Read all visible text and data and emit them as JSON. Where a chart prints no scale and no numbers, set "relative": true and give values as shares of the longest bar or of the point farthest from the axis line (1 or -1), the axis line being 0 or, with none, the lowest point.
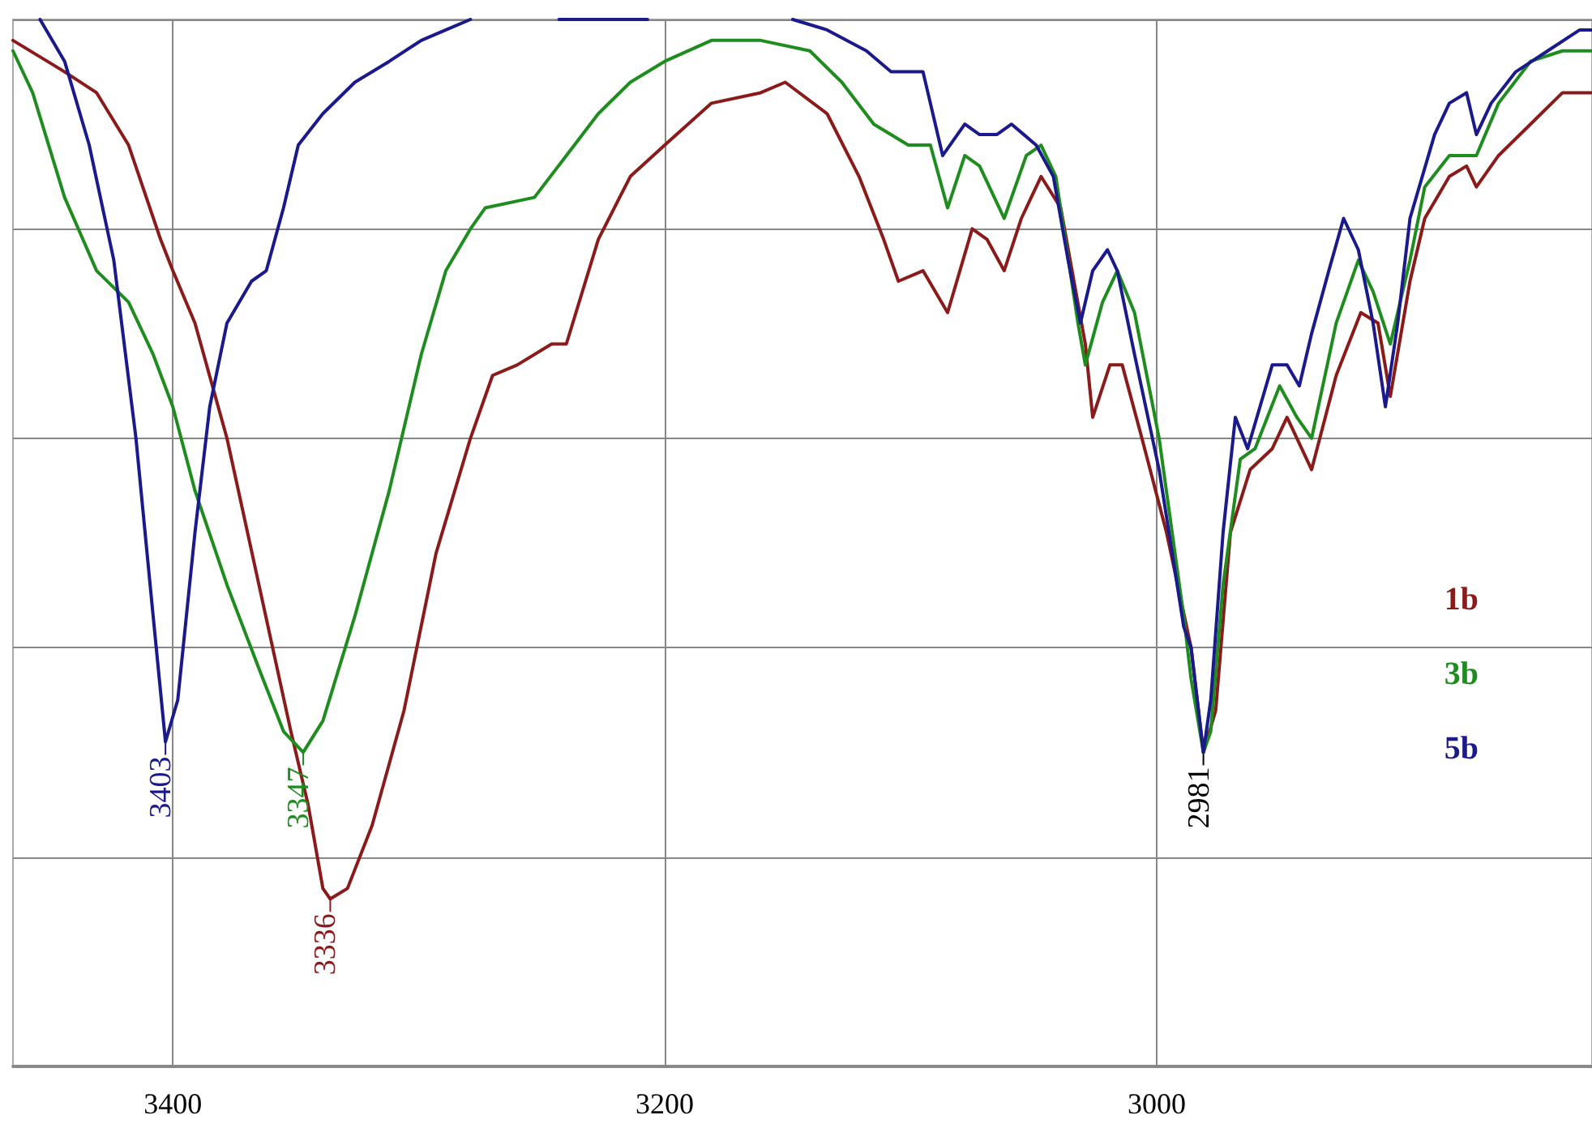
{
  "chart_data": {
    "type": "line",
    "relative": true,
    "xlim": [
      3465,
      2823
    ],
    "xticks": [
      3400,
      3200,
      3000
    ],
    "grid": true,
    "legend": "right",
    "marker": "none",
    "line_style": "solid",
    "series": [
      {
        "name": "1b",
        "color": "#8b1a1a",
        "x": [
          3465,
          3444,
          3431,
          3418,
          3405,
          3400,
          3391,
          3378,
          3365,
          3352,
          3345,
          3339,
          3336,
          3329,
          3319,
          3306,
          3293,
          3279,
          3270,
          3260,
          3246,
          3240,
          3227,
          3214,
          3200,
          3181,
          3161,
          3151,
          3134,
          3121,
          3111,
          3105,
          3095,
          3085,
          3075,
          3069,
          3062,
          3055,
          3047,
          3039,
          3029,
          3026,
          3019,
          3014,
          3006,
          2996,
          2986,
          2981,
          2976,
          2970,
          2962,
          2953,
          2947,
          2937,
          2927,
          2917,
          2910,
          2905,
          2897,
          2891,
          2881,
          2874,
          2870,
          2861,
          2848,
          2835,
          2823
        ],
        "values": [
          0.98,
          0.95,
          0.93,
          0.88,
          0.79,
          0.76,
          0.71,
          0.6,
          0.46,
          0.32,
          0.25,
          0.17,
          0.16,
          0.17,
          0.23,
          0.34,
          0.49,
          0.6,
          0.66,
          0.67,
          0.69,
          0.69,
          0.79,
          0.85,
          0.88,
          0.92,
          0.93,
          0.94,
          0.91,
          0.85,
          0.79,
          0.75,
          0.76,
          0.72,
          0.8,
          0.79,
          0.76,
          0.81,
          0.85,
          0.82,
          0.69,
          0.62,
          0.67,
          0.67,
          0.6,
          0.51,
          0.4,
          0.3,
          0.34,
          0.51,
          0.57,
          0.59,
          0.62,
          0.57,
          0.66,
          0.72,
          0.71,
          0.64,
          0.75,
          0.81,
          0.85,
          0.86,
          0.84,
          0.87,
          0.9,
          0.93,
          0.93
        ]
      },
      {
        "name": "3b",
        "color": "#1e8c1e",
        "x": [
          3465,
          3457,
          3444,
          3431,
          3418,
          3408,
          3400,
          3391,
          3378,
          3365,
          3355,
          3347,
          3339,
          3326,
          3312,
          3299,
          3289,
          3279,
          3273,
          3253,
          3240,
          3227,
          3214,
          3200,
          3181,
          3161,
          3141,
          3128,
          3115,
          3101,
          3092,
          3085,
          3078,
          3072,
          3062,
          3053,
          3047,
          3041,
          3032,
          3029,
          3022,
          3016,
          3009,
          2999,
          2989,
          2986,
          2981,
          2978,
          2973,
          2966,
          2960,
          2950,
          2943,
          2937,
          2927,
          2918,
          2912,
          2905,
          2897,
          2891,
          2881,
          2874,
          2870,
          2861,
          2848,
          2835,
          2823
        ],
        "values": [
          0.97,
          0.93,
          0.83,
          0.76,
          0.73,
          0.68,
          0.63,
          0.55,
          0.46,
          0.38,
          0.32,
          0.3,
          0.33,
          0.43,
          0.55,
          0.68,
          0.76,
          0.8,
          0.82,
          0.83,
          0.87,
          0.91,
          0.94,
          0.96,
          0.98,
          0.98,
          0.97,
          0.94,
          0.9,
          0.88,
          0.88,
          0.82,
          0.87,
          0.86,
          0.81,
          0.87,
          0.88,
          0.85,
          0.71,
          0.67,
          0.73,
          0.76,
          0.72,
          0.6,
          0.43,
          0.37,
          0.3,
          0.32,
          0.46,
          0.58,
          0.59,
          0.65,
          0.62,
          0.6,
          0.71,
          0.77,
          0.74,
          0.69,
          0.77,
          0.84,
          0.87,
          0.87,
          0.87,
          0.92,
          0.96,
          0.97,
          0.97
        ]
      },
      {
        "name": "5b",
        "color": "#1a1a8c",
        "x": [
          3454,
          3444,
          3434,
          3424,
          3415,
          3408,
          3403,
          3398,
          3391,
          3385,
          3378,
          3368,
          3362,
          3355,
          3349,
          3339,
          3326,
          3312,
          3299,
          3289,
          3279,
          3273,
          3243,
          3227,
          3207,
          3194,
          3148,
          3134,
          3118,
          3108,
          3103,
          3095,
          3087,
          3078,
          3072,
          3065,
          3059,
          3054,
          3049,
          3042,
          3036,
          3031,
          3026,
          3020,
          3016,
          3009,
          2999,
          2989,
          2986,
          2981,
          2978,
          2973,
          2968,
          2963,
          2958,
          2953,
          2947,
          2942,
          2937,
          2930,
          2924,
          2918,
          2912,
          2907,
          2902,
          2897,
          2887,
          2881,
          2874,
          2870,
          2864,
          2854,
          2841,
          2828,
          2823
        ],
        "values": [
          1.0,
          0.96,
          0.88,
          0.77,
          0.6,
          0.43,
          0.31,
          0.35,
          0.51,
          0.63,
          0.71,
          0.75,
          0.76,
          0.82,
          0.88,
          0.91,
          0.94,
          0.96,
          0.98,
          0.99,
          1.0,
          null,
          1.0,
          1.0,
          1.0,
          null,
          1.0,
          0.99,
          0.97,
          0.95,
          0.95,
          0.95,
          0.87,
          0.9,
          0.89,
          0.89,
          0.9,
          0.89,
          0.88,
          0.85,
          0.77,
          0.71,
          0.76,
          0.78,
          0.76,
          0.68,
          0.57,
          0.42,
          0.4,
          0.3,
          0.35,
          0.51,
          0.62,
          0.59,
          0.63,
          0.67,
          0.67,
          0.65,
          0.7,
          0.76,
          0.81,
          0.78,
          0.71,
          0.63,
          0.71,
          0.81,
          0.89,
          0.92,
          0.93,
          0.89,
          0.92,
          0.95,
          0.97,
          0.99,
          0.99
        ]
      }
    ],
    "annotations": [
      {
        "text": "3403",
        "x": 3403,
        "y": 0.31
      },
      {
        "text": "3347",
        "x": 3347,
        "y": 0.3
      },
      {
        "text": "3336",
        "x": 3336,
        "y": 0.16
      },
      {
        "text": "2981",
        "x": 2981,
        "y": 0.3
      }
    ]
  }
}
